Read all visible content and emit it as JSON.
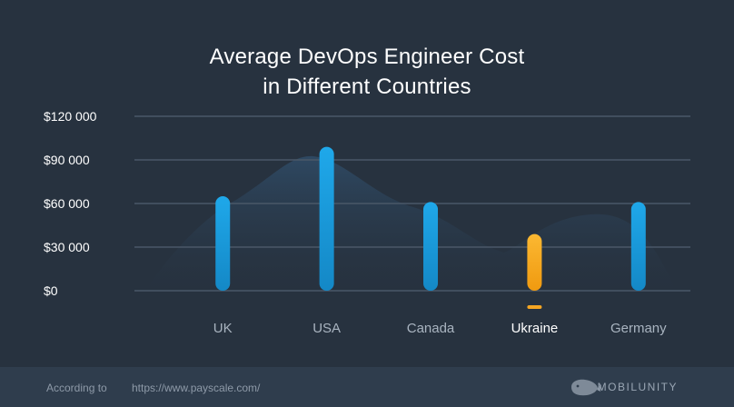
{
  "chart_data": {
    "type": "bar",
    "title_lines": [
      "Average DevOps Engineer Cost",
      "in Different Countries"
    ],
    "categories": [
      "UK",
      "USA",
      "Canada",
      "Ukraine",
      "Germany"
    ],
    "values": [
      65000,
      99000,
      61000,
      39000,
      61000
    ],
    "highlight_category": "Ukraine",
    "y_ticks": [
      "$0",
      "$30 000",
      "$60 000",
      "$90 000",
      "$120 000"
    ],
    "y_tick_values": [
      0,
      30000,
      60000,
      90000,
      120000
    ],
    "ylim": [
      0,
      120000
    ],
    "xlabel": "",
    "ylabel": "",
    "grid": true,
    "colors": {
      "bar": "#1a9ad9",
      "highlight": "#f5a623",
      "background": "#27323f",
      "grid": "#4a5868"
    }
  },
  "footer": {
    "according_label": "According to",
    "source_url": "https://www.payscale.com/",
    "brand": "MOBILUNITY",
    "brand_icon": "whale-icon"
  }
}
